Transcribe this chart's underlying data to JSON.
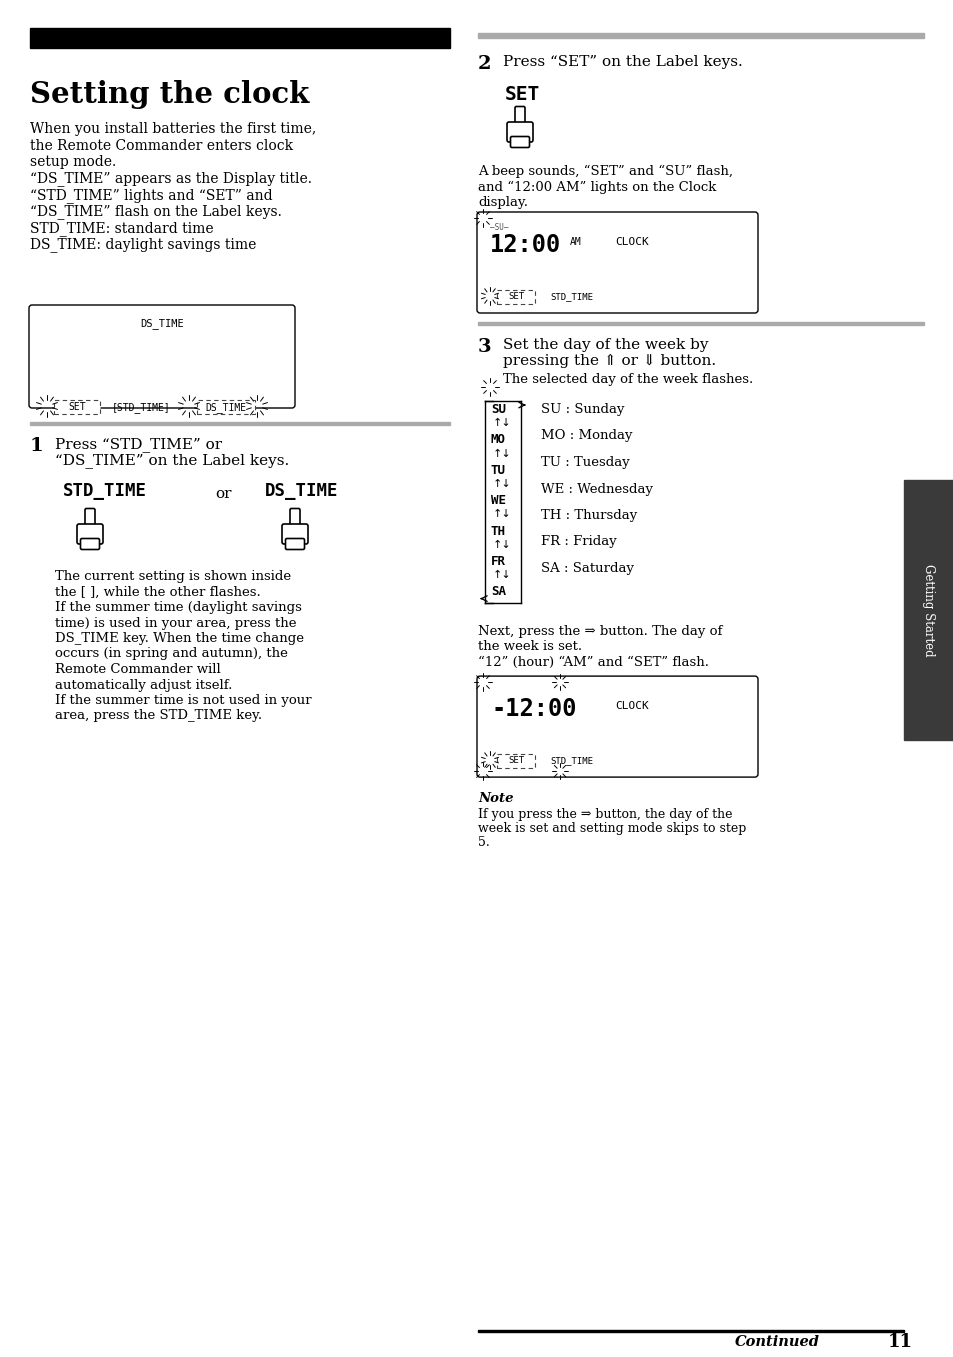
{
  "page_width": 9.54,
  "page_height": 13.57,
  "bg_color": "#ffffff",
  "title": "Setting the clock",
  "para1_lines": [
    "When you install batteries the first time,",
    "the Remote Commander enters clock",
    "setup mode.",
    "“DS_TIME” appears as the Display title.",
    "“STD_TIME” lights and “SET” and",
    "“DS_TIME” flash on the Label keys.",
    "STD_TIME: standard time",
    "DS_TIME: daylight savings time"
  ],
  "step1_num": "1",
  "step1_line1": "Press “STD_TIME” or",
  "step1_line2": "“DS_TIME” on the Label keys.",
  "step1_body_lines": [
    "The current setting is shown inside",
    "the [ ], while the other flashes.",
    "If the summer time (daylight savings",
    "time) is used in your area, press the",
    "DS_TIME key. When the time change",
    "occurs (in spring and autumn), the",
    "Remote Commander will",
    "automatically adjust itself.",
    "If the summer time is not used in your",
    "area, press the STD_TIME key."
  ],
  "step2_num": "2",
  "step2_text": "Press “SET” on the Label keys.",
  "step2_body_lines": [
    "A beep sounds, “SET” and “SU” flash,",
    "and “12:00 AM” lights on the Clock",
    "display."
  ],
  "step3_num": "3",
  "step3_line1": "Set the day of the week by",
  "step3_line2": "pressing the ⇑ or ⇓ button.",
  "step3_sub": "The selected day of the week flashes.",
  "days_left": [
    "SU",
    "↑↓",
    "MO",
    "↑↓",
    "TU",
    "↑↓",
    "WE",
    "↑↓",
    "TH",
    "↑↓",
    "FR",
    "↑↓",
    "SA"
  ],
  "days_right": [
    "SU : Sunday",
    "MO : Monday",
    "TU : Tuesday",
    "WE : Wednesday",
    "TH : Thursday",
    "FR : Friday",
    "SA : Saturday"
  ],
  "step3_next_lines": [
    "Next, press the ⇒ button. The day of",
    "the week is set.",
    "“12” (hour) “AM” and “SET” flash."
  ],
  "note_label": "Note",
  "note_lines": [
    "If you press the ⇒ button, the day of the",
    "week is set and setting mode skips to step",
    "5."
  ],
  "sidebar_text": "Getting Started",
  "sidebar_color": "#4a4a4a",
  "page_num": "11",
  "continued_text": "Continued"
}
